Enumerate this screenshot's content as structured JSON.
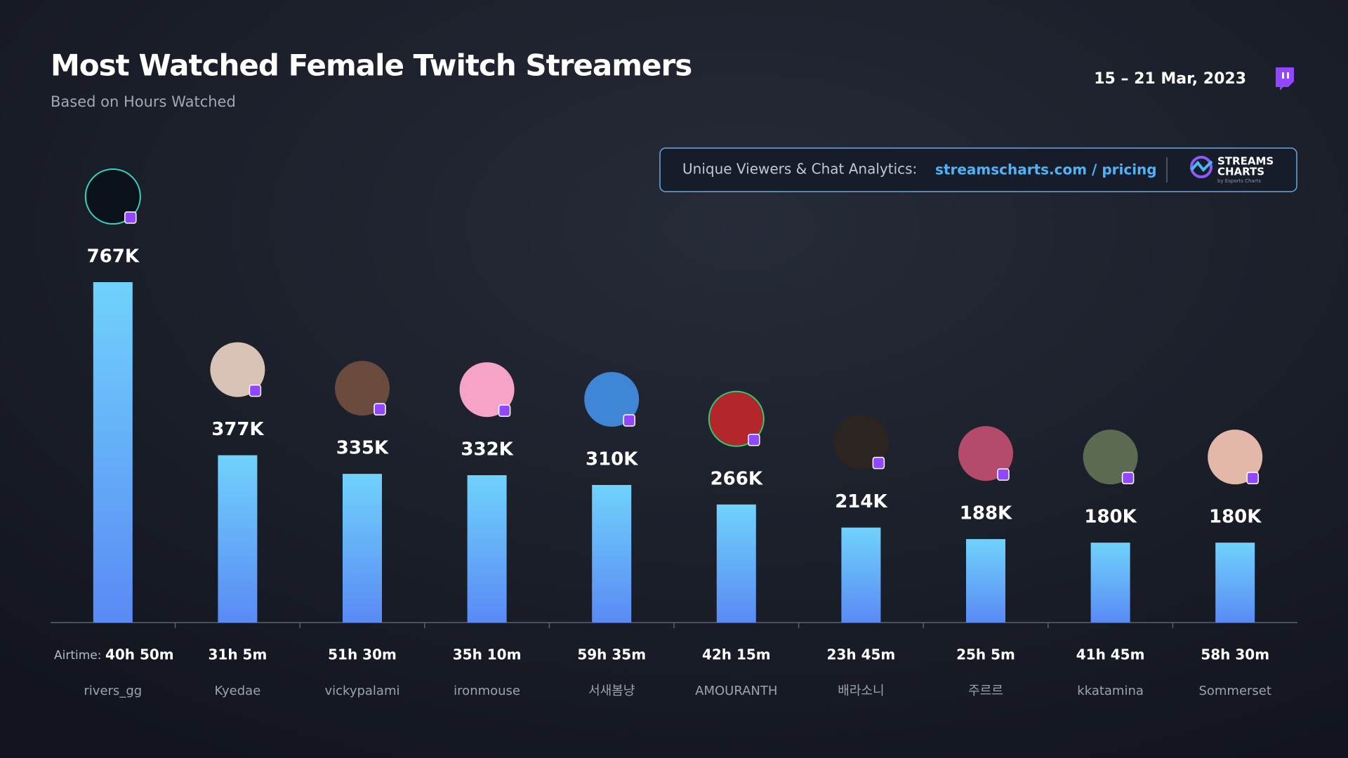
{
  "chart_data": {
    "type": "bar",
    "title": "Most Watched Female Twitch Streamers",
    "subtitle": "Based on Hours Watched",
    "date": "15 – 21 Mar, 2023",
    "banner": {
      "text": "Unique Viewers & Chat Analytics:",
      "link": "streamscharts.com / pricing"
    },
    "logo": {
      "line1": "STREAMS",
      "line2": "CHARTS",
      "tagline": "by Esports Charts"
    },
    "airtime_label": "Airtime:",
    "categories": [
      "rivers_gg",
      "Kyedae",
      "vickypalami",
      "ironmouse",
      "서새봄냥",
      "AMOURANTH",
      "배라소니",
      "주르르",
      "kkatamina",
      "Sommerset"
    ],
    "airtime": [
      "40h 50m",
      "31h 5m",
      "51h 30m",
      "35h 10m",
      "59h 35m",
      "42h 15m",
      "23h 45m",
      "25h 5m",
      "41h 45m",
      "58h 30m"
    ],
    "values": [
      767000,
      377000,
      335000,
      332000,
      310000,
      266000,
      214000,
      188000,
      180000,
      180000
    ],
    "value_labels": [
      "767K",
      "377K",
      "335K",
      "332K",
      "310K",
      "266K",
      "214K",
      "188K",
      "180K",
      "180K"
    ],
    "colors": [
      "#70d2fb",
      "#5a8af5"
    ]
  }
}
